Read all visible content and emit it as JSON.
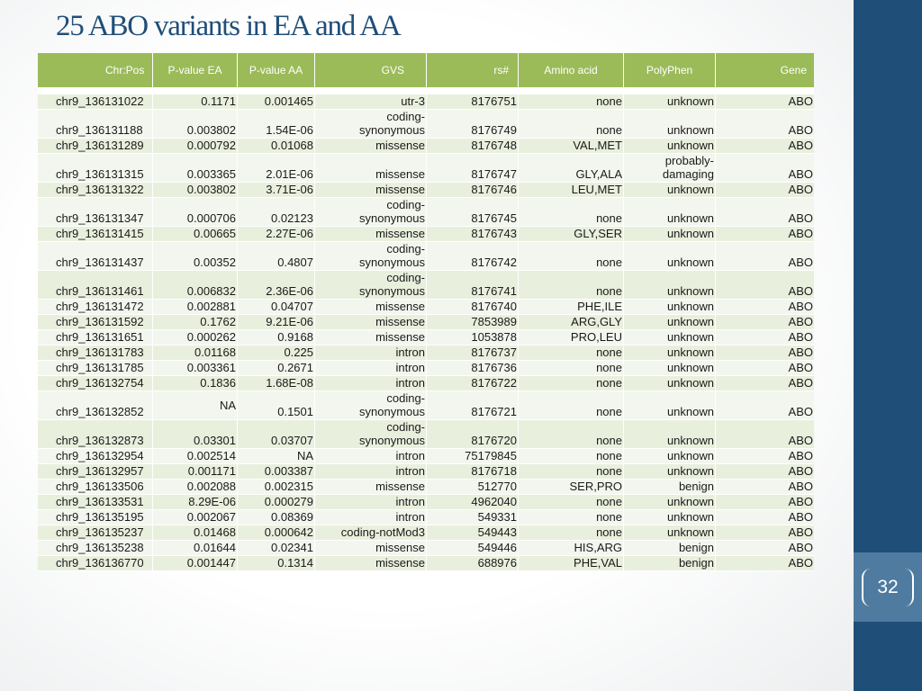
{
  "title": "25 ABO variants in EA and AA",
  "page_number": "32",
  "colors": {
    "header_fill": "#9bbb59",
    "row_fill_a": "#e9efdd",
    "row_fill_b": "#f3f6ee",
    "title": "#1f4e79",
    "band": "#1f4e79"
  },
  "table": {
    "headers": [
      "Chr:Pos",
      "P-value EA",
      "P-value AA",
      "GVS",
      "rs#",
      "Amino acid",
      "PolyPhen",
      "Gene"
    ],
    "rows": [
      [
        "chr9_136131022",
        "0.1171",
        "0.001465",
        "utr-3",
        "8176751",
        "none",
        "unknown",
        "ABO"
      ],
      [
        "chr9_136131188",
        "0.003802",
        "1.54E-06",
        "coding-\nsynonymous",
        "8176749",
        "none",
        "unknown",
        "ABO"
      ],
      [
        "chr9_136131289",
        "0.000792",
        "0.01068",
        "missense",
        "8176748",
        "VAL,MET",
        "unknown",
        "ABO"
      ],
      [
        "chr9_136131315",
        "0.003365",
        "2.01E-06",
        "missense",
        "8176747",
        "GLY,ALA",
        "probably-\ndamaging",
        "ABO"
      ],
      [
        "chr9_136131322",
        "0.003802",
        "3.71E-06",
        "missense",
        "8176746",
        "LEU,MET",
        "unknown",
        "ABO"
      ],
      [
        "chr9_136131347",
        "0.000706",
        "0.02123",
        "coding-\nsynonymous",
        "8176745",
        "none",
        "unknown",
        "ABO"
      ],
      [
        "chr9_136131415",
        "0.00665",
        "2.27E-06",
        "missense",
        "8176743",
        "GLY,SER",
        "unknown",
        "ABO"
      ],
      [
        "chr9_136131437",
        "0.00352",
        "0.4807",
        "coding-\nsynonymous",
        "8176742",
        "none",
        "unknown",
        "ABO"
      ],
      [
        "chr9_136131461",
        "0.006832",
        "2.36E-06",
        "coding-\nsynonymous",
        "8176741",
        "none",
        "unknown",
        "ABO"
      ],
      [
        "chr9_136131472",
        "0.002881",
        "0.04707",
        "missense",
        "8176740",
        "PHE,ILE",
        "unknown",
        "ABO"
      ],
      [
        "chr9_136131592",
        "0.1762",
        "9.21E-06",
        "missense",
        "7853989",
        "ARG,GLY",
        "unknown",
        "ABO"
      ],
      [
        "chr9_136131651",
        "0.000262",
        "0.9168",
        "missense",
        "1053878",
        "PRO,LEU",
        "unknown",
        "ABO"
      ],
      [
        "chr9_136131783",
        "0.01168",
        "0.225",
        "intron",
        "8176737",
        "none",
        "unknown",
        "ABO"
      ],
      [
        "chr9_136131785",
        "0.003361",
        "0.2671",
        "intron",
        "8176736",
        "none",
        "unknown",
        "ABO"
      ],
      [
        "chr9_136132754",
        "0.1836",
        "1.68E-08",
        "intron",
        "8176722",
        "none",
        "unknown",
        "ABO"
      ],
      [
        "chr9_136132852",
        "NA",
        "0.1501",
        "coding-\nsynonymous",
        "8176721",
        "none",
        "unknown",
        "ABO"
      ],
      [
        "chr9_136132873",
        "0.03301",
        "0.03707",
        "coding-\nsynonymous",
        "8176720",
        "none",
        "unknown",
        "ABO"
      ],
      [
        "chr9_136132954",
        "0.002514",
        "NA",
        "intron",
        "75179845",
        "none",
        "unknown",
        "ABO"
      ],
      [
        "chr9_136132957",
        "0.001171",
        "0.003387",
        "intron",
        "8176718",
        "none",
        "unknown",
        "ABO"
      ],
      [
        "chr9_136133506",
        "0.002088",
        "0.002315",
        "missense",
        "512770",
        "SER,PRO",
        "benign",
        "ABO"
      ],
      [
        "chr9_136133531",
        "8.29E-06",
        "0.000279",
        "intron",
        "4962040",
        "none",
        "unknown",
        "ABO"
      ],
      [
        "chr9_136135195",
        "0.002067",
        "0.08369",
        "intron",
        "549331",
        "none",
        "unknown",
        "ABO"
      ],
      [
        "chr9_136135237",
        "0.01468",
        "0.000642",
        "coding-notMod3",
        "549443",
        "none",
        "unknown",
        "ABO"
      ],
      [
        "chr9_136135238",
        "0.01644",
        "0.02341",
        "missense",
        "549446",
        "HIS,ARG",
        "benign",
        "ABO"
      ],
      [
        "chr9_136136770",
        "0.001447",
        "0.1314",
        "missense",
        "688976",
        "PHE,VAL",
        "benign",
        "ABO"
      ]
    ]
  }
}
